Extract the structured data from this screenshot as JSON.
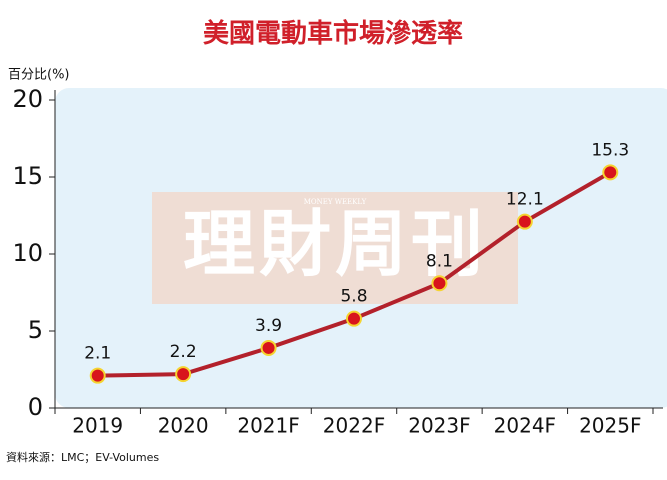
{
  "chart_data": {
    "type": "line",
    "title": "美國電動車市場滲透率",
    "y_label": "百分比(%)",
    "categories": [
      "2019",
      "2020",
      "2021F",
      "2022F",
      "2023F",
      "2024F",
      "2025F"
    ],
    "values": [
      2.1,
      2.2,
      3.9,
      5.8,
      8.1,
      12.1,
      15.3
    ],
    "color": "#b3212b",
    "marker_color": "#d8141c",
    "ylim": [
      0,
      20
    ],
    "yticks": [
      0,
      5,
      10,
      15,
      20
    ],
    "watermark": "理財周刊",
    "watermark_sub": "MONEY WEEKLY",
    "source": "資料來源：LMC；EV-Volumes"
  }
}
